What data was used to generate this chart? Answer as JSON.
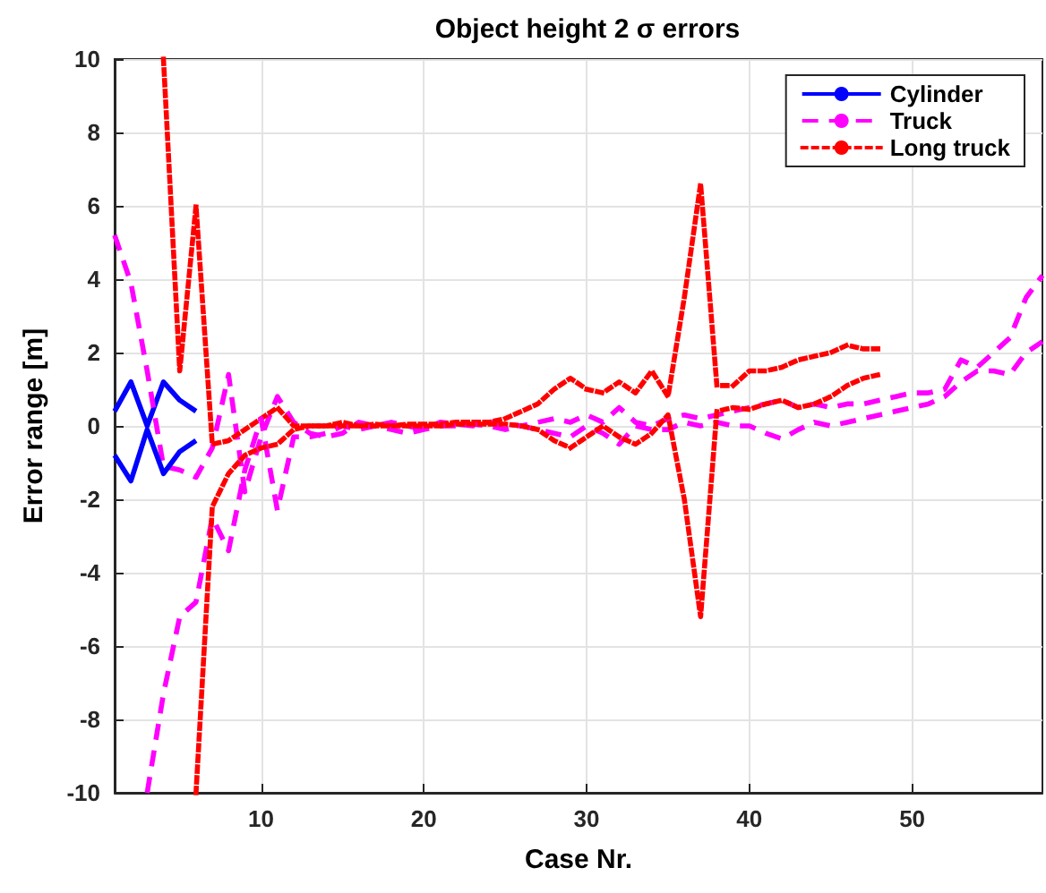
{
  "chart_data": {
    "type": "line",
    "title": "Object height 2 σ errors",
    "xlabel": "Case Nr.",
    "ylabel": "Error range [m]",
    "xlim": [
      1,
      58
    ],
    "xticks": [
      10,
      20,
      30,
      40,
      50
    ],
    "ylim": [
      -10,
      10
    ],
    "yticks": [
      -10,
      -8,
      -6,
      -4,
      -2,
      0,
      2,
      4,
      6,
      8,
      10
    ],
    "grid": true,
    "legend": "top right",
    "series": [
      {
        "name": "Cylinder",
        "color": "#0000ff",
        "line_style": "solid",
        "x": [
          1,
          2,
          3,
          4,
          5,
          6
        ],
        "values": [
          0.4,
          1.2,
          0,
          1.2,
          0.7,
          0.4
        ]
      },
      {
        "name": "Truck",
        "color": "#ff00ff",
        "line_style": "dashed",
        "x": [
          1,
          2,
          3,
          4,
          5,
          6,
          7,
          8,
          9,
          10,
          11,
          12,
          13,
          14,
          15,
          16,
          17,
          18,
          19,
          20,
          21,
          22,
          23,
          24,
          25,
          26,
          27,
          28,
          29,
          30,
          31,
          32,
          33,
          34,
          35,
          36,
          37,
          38,
          39,
          40,
          41,
          42,
          43,
          44,
          45,
          46,
          47,
          48,
          49,
          50,
          51,
          52,
          53,
          54,
          55,
          56,
          57,
          58
        ],
        "values": [
          5.2,
          3.9,
          1.5,
          -1.1,
          -1.2,
          -1.4,
          -0.6,
          1.4,
          -1.8,
          -0.3,
          0.8,
          0.1,
          -0.2,
          -0.3,
          -0.2,
          0.1,
          0,
          0.1,
          0,
          -0.1,
          0.1,
          0.05,
          0,
          0.1,
          0.05,
          0,
          0.1,
          0.2,
          0.1,
          0.3,
          0.1,
          0.5,
          0.1,
          0,
          0.2,
          0.3,
          0.2,
          0.3,
          0.4,
          0.5,
          0.6,
          0.7,
          0.5,
          0.6,
          0.5,
          0.6,
          0.6,
          0.7,
          0.8,
          0.9,
          0.9,
          1,
          1.8,
          1.6,
          2,
          2.4,
          3.5,
          4.1
        ]
      },
      {
        "name": "Long truck",
        "color": "#ff0000",
        "line_style": "dotted",
        "x": [
          4,
          5,
          6,
          7,
          8,
          9,
          10,
          11,
          12,
          13,
          14,
          15,
          16,
          17,
          18,
          19,
          20,
          21,
          22,
          23,
          24,
          25,
          26,
          27,
          28,
          29,
          30,
          31,
          32,
          33,
          34,
          35,
          36,
          37,
          38,
          39,
          40,
          41,
          42,
          43,
          44,
          45,
          46,
          47,
          48
        ],
        "values": [
          10,
          1.5,
          6,
          -0.5,
          -0.4,
          -0.1,
          0.2,
          0.5,
          0,
          0,
          0,
          0.1,
          0,
          0.05,
          0,
          0.05,
          0.05,
          0.05,
          0.1,
          0.1,
          0.1,
          0.2,
          0.4,
          0.6,
          1,
          1.3,
          1,
          0.9,
          1.2,
          0.9,
          1.5,
          0.8,
          3.5,
          6.6,
          1.1,
          1.1,
          1.5,
          1.5,
          1.6,
          1.8,
          1.9,
          2,
          2.2,
          2.1,
          2.1
        ]
      },
      {
        "color": "#0000ff",
        "line_style": "solid",
        "x": [
          1,
          2,
          3,
          4,
          5,
          6
        ],
        "values": [
          -0.8,
          -1.5,
          -0.1,
          -1.3,
          -0.7,
          -0.4
        ]
      },
      {
        "color": "#ff00ff",
        "line_style": "dashed",
        "x": [
          3,
          4,
          5,
          6,
          7,
          8,
          9,
          10,
          11,
          12,
          13,
          14,
          15,
          16,
          17,
          18,
          19,
          20,
          21,
          22,
          23,
          24,
          25,
          26,
          27,
          28,
          29,
          30,
          31,
          32,
          33,
          34,
          35,
          36,
          37,
          38,
          39,
          40,
          41,
          42,
          43,
          44,
          45,
          46,
          47,
          48,
          49,
          50,
          51,
          52,
          53,
          54,
          55,
          56,
          57,
          58
        ],
        "values": [
          -10,
          -7.3,
          -5.2,
          -4.8,
          -2.5,
          -3.4,
          -1.2,
          0.2,
          -2.3,
          -0.3,
          -0.3,
          -0.2,
          0,
          -0.1,
          0,
          -0.1,
          -0.2,
          -0.1,
          0,
          0,
          0.05,
          0,
          -0.1,
          0,
          -0.1,
          -0.2,
          -0.3,
          0,
          -0.2,
          -0.5,
          0,
          -0.1,
          -0.1,
          0.1,
          0,
          0.1,
          0,
          0,
          -0.2,
          -0.35,
          -0.1,
          0.1,
          0,
          0.1,
          0.2,
          0.3,
          0.4,
          0.5,
          0.6,
          0.8,
          1.2,
          1.5,
          1.5,
          1.4,
          2,
          2.3
        ]
      },
      {
        "color": "#ff0000",
        "line_style": "dotted",
        "x": [
          6,
          7,
          8,
          9,
          10,
          11,
          12,
          13,
          14,
          15,
          16,
          17,
          18,
          19,
          20,
          21,
          22,
          23,
          24,
          25,
          26,
          27,
          28,
          29,
          30,
          31,
          32,
          33,
          34,
          35,
          36,
          37,
          38,
          39,
          40,
          41,
          42,
          43,
          44,
          45,
          46,
          47,
          48
        ],
        "values": [
          -10,
          -2.2,
          -1.3,
          -0.8,
          -0.6,
          -0.5,
          -0.1,
          0,
          0,
          0,
          0,
          0,
          0,
          0,
          0,
          0,
          0.05,
          0.05,
          0.05,
          0.05,
          0,
          -0.1,
          -0.4,
          -0.6,
          -0.3,
          0,
          -0.3,
          -0.5,
          -0.2,
          0.3,
          -2,
          -5.2,
          0.4,
          0.5,
          0.45,
          0.6,
          0.7,
          0.5,
          0.6,
          0.8,
          1.1,
          1.3,
          1.4
        ]
      }
    ]
  }
}
